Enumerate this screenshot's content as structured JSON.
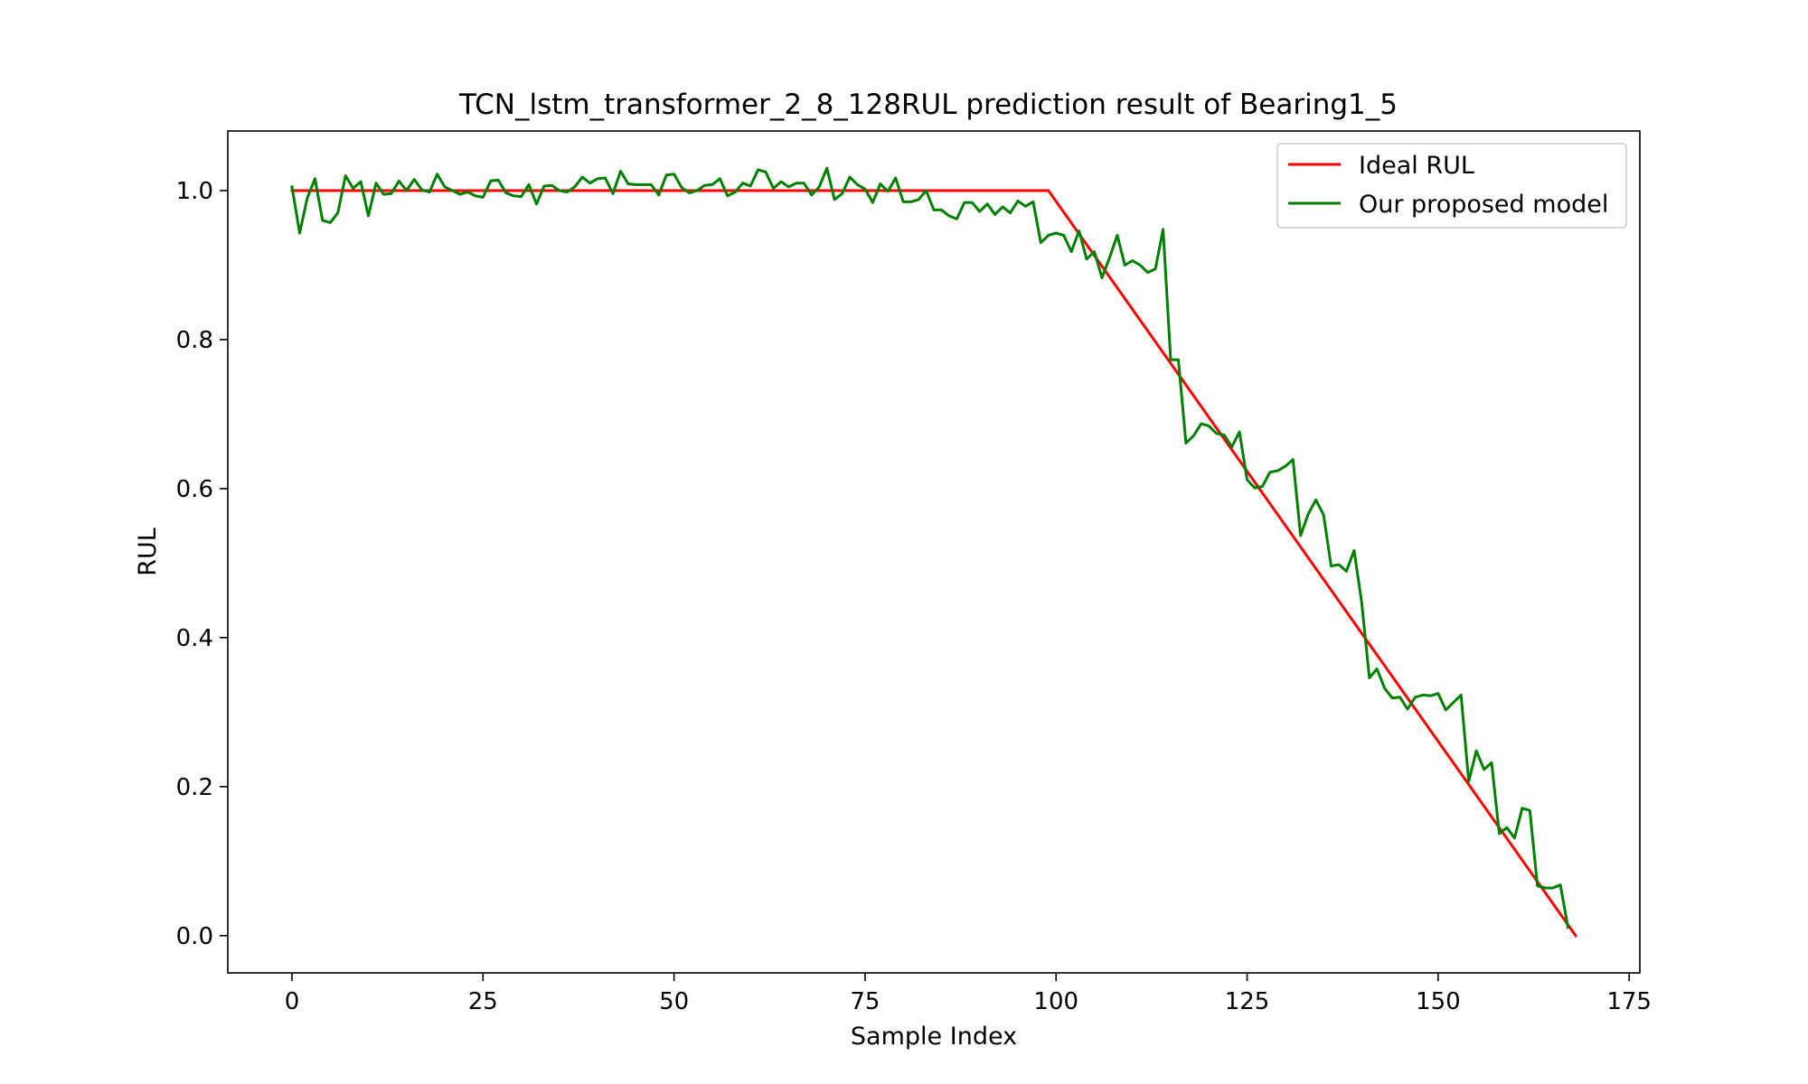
{
  "chart_data": {
    "type": "line",
    "title": "TCN_lstm_transformer_2_8_128RUL prediction result of Bearing1_5",
    "xlabel": "Sample Index",
    "ylabel": "RUL",
    "xlim": [
      -8.4,
      176.4
    ],
    "ylim": [
      -0.05,
      1.08
    ],
    "xticks": [
      0,
      25,
      50,
      75,
      100,
      125,
      150,
      175
    ],
    "xtick_labels": [
      "0",
      "25",
      "50",
      "75",
      "100",
      "125",
      "150",
      "175"
    ],
    "yticks": [
      0.0,
      0.2,
      0.4,
      0.6,
      0.8,
      1.0
    ],
    "ytick_labels": [
      "0.0",
      "0.2",
      "0.4",
      "0.6",
      "0.8",
      "1.0"
    ],
    "grid": false,
    "legend_position": "top-right",
    "series": [
      {
        "name": "Ideal RUL",
        "color": "#ff0000",
        "x": [
          0,
          99,
          168
        ],
        "y": [
          1.0,
          1.0,
          0.0
        ]
      },
      {
        "name": "Our proposed model",
        "color": "#008000",
        "x": [
          0,
          1,
          2,
          3,
          4,
          5,
          6,
          7,
          8,
          9,
          10,
          11,
          12,
          13,
          14,
          15,
          16,
          17,
          18,
          19,
          20,
          21,
          22,
          23,
          24,
          25,
          26,
          27,
          28,
          29,
          30,
          31,
          32,
          33,
          34,
          35,
          36,
          37,
          38,
          39,
          40,
          41,
          42,
          43,
          44,
          45,
          46,
          47,
          48,
          49,
          50,
          51,
          52,
          53,
          54,
          55,
          56,
          57,
          58,
          59,
          60,
          61,
          62,
          63,
          64,
          65,
          66,
          67,
          68,
          69,
          70,
          71,
          72,
          73,
          74,
          75,
          76,
          77,
          78,
          79,
          80,
          81,
          82,
          83,
          84,
          85,
          86,
          87,
          88,
          89,
          90,
          91,
          92,
          93,
          94,
          95,
          96,
          97,
          98,
          99,
          100,
          101,
          102,
          103,
          104,
          105,
          106,
          107,
          108,
          109,
          110,
          111,
          112,
          113,
          114,
          115,
          116,
          117,
          118,
          119,
          120,
          121,
          122,
          123,
          124,
          125,
          126,
          127,
          128,
          129,
          130,
          131,
          132,
          133,
          134,
          135,
          136,
          137,
          138,
          139,
          140,
          141,
          142,
          143,
          144,
          145,
          146,
          147,
          148,
          149,
          150,
          151,
          152,
          153,
          154,
          155,
          156,
          157,
          158,
          159,
          160,
          161,
          162,
          163,
          164,
          165,
          166,
          167
        ],
        "y": [
          1.005,
          0.943,
          0.99,
          1.016,
          0.96,
          0.957,
          0.97,
          1.02,
          1.003,
          1.012,
          0.966,
          1.01,
          0.995,
          0.996,
          1.013,
          1.0,
          1.015,
          1.001,
          0.998,
          1.022,
          1.005,
          1.0,
          0.995,
          0.998,
          0.993,
          0.991,
          1.013,
          1.014,
          0.997,
          0.993,
          0.992,
          1.008,
          0.982,
          1.006,
          1.007,
          1.0,
          0.998,
          1.005,
          1.018,
          1.01,
          1.016,
          1.017,
          0.996,
          1.026,
          1.009,
          1.008,
          1.008,
          1.008,
          0.994,
          1.021,
          1.022,
          1.004,
          0.997,
          1.0,
          1.007,
          1.008,
          1.016,
          0.993,
          0.998,
          1.01,
          1.006,
          1.028,
          1.025,
          1.003,
          1.012,
          1.005,
          1.01,
          1.01,
          0.994,
          1.005,
          1.03,
          0.988,
          0.996,
          1.018,
          1.008,
          1.002,
          0.984,
          1.009,
          0.999,
          1.017,
          0.985,
          0.985,
          0.988,
          1.0,
          0.974,
          0.974,
          0.966,
          0.962,
          0.984,
          0.984,
          0.972,
          0.982,
          0.968,
          0.978,
          0.97,
          0.986,
          0.979,
          0.985,
          0.93,
          0.94,
          0.943,
          0.94,
          0.918,
          0.946,
          0.908,
          0.918,
          0.883,
          0.91,
          0.94,
          0.9,
          0.906,
          0.9,
          0.89,
          0.895,
          0.948,
          0.773,
          0.773,
          0.661,
          0.671,
          0.687,
          0.684,
          0.674,
          0.672,
          0.656,
          0.676,
          0.612,
          0.601,
          0.603,
          0.622,
          0.624,
          0.63,
          0.639,
          0.537,
          0.566,
          0.585,
          0.565,
          0.496,
          0.498,
          0.489,
          0.517,
          0.447,
          0.346,
          0.358,
          0.332,
          0.319,
          0.32,
          0.304,
          0.32,
          0.323,
          0.322,
          0.325,
          0.303,
          0.313,
          0.323,
          0.207,
          0.248,
          0.223,
          0.232,
          0.137,
          0.145,
          0.131,
          0.171,
          0.168,
          0.067,
          0.064,
          0.064,
          0.068,
          0.011
        ]
      }
    ]
  }
}
